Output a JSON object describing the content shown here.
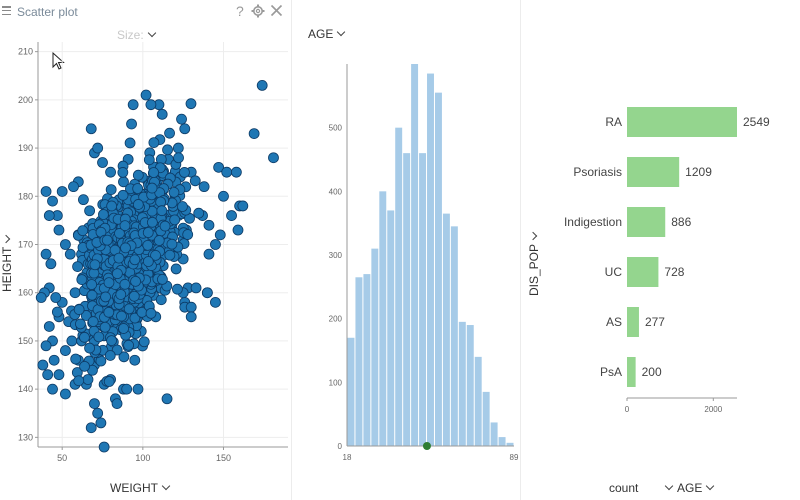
{
  "scatter": {
    "title": "Scatter plot",
    "help_icon": "?",
    "size_label": "Size:",
    "x_axis_label": "WEIGHT",
    "y_axis_label": "HEIGHT",
    "colors": {
      "point": "#1f77b4",
      "point_stroke": "#0d3b66",
      "grid": "#ededed",
      "axis": "#999999"
    }
  },
  "histogram": {
    "column_label": "AGE",
    "colors": {
      "bar": "#a6cbe8",
      "marker": "#2e7d32"
    }
  },
  "barchart": {
    "y_axis_label": "DIS_POP",
    "x_axis_label": "count",
    "split_label": "AGE",
    "colors": {
      "bar": "#94d58e"
    }
  },
  "chart_data": [
    {
      "type": "scatter",
      "xlabel": "WEIGHT",
      "ylabel": "HEIGHT",
      "xlim": [
        35,
        190
      ],
      "ylim": [
        128,
        212
      ],
      "xticks": [
        "50",
        "100",
        "150"
      ],
      "yticks": [
        "130",
        "140",
        "150",
        "160",
        "170",
        "180",
        "190",
        "200",
        "210"
      ],
      "grid": true,
      "points": [
        [
          174,
          203
        ],
        [
          181,
          188
        ],
        [
          169,
          193
        ],
        [
          147,
          186
        ],
        [
          152,
          185
        ],
        [
          158,
          185
        ],
        [
          160,
          178
        ],
        [
          162,
          178
        ],
        [
          155,
          176
        ],
        [
          159,
          173
        ],
        [
          150,
          180
        ],
        [
          148,
          172
        ],
        [
          141,
          168
        ],
        [
          140,
          160
        ],
        [
          128,
          161
        ],
        [
          125,
          167
        ],
        [
          121,
          168
        ],
        [
          126,
          158
        ],
        [
          133,
          161
        ],
        [
          115,
          138
        ],
        [
          83,
          138
        ],
        [
          76,
          141
        ],
        [
          76,
          128
        ],
        [
          74,
          133
        ],
        [
          68,
          132
        ],
        [
          72,
          135
        ],
        [
          70,
          137
        ],
        [
          65,
          141
        ],
        [
          66,
          142
        ],
        [
          65,
          145
        ],
        [
          70,
          145
        ],
        [
          88,
          140
        ],
        [
          90,
          140
        ],
        [
          80,
          142
        ],
        [
          84,
          137
        ],
        [
          97,
          140
        ],
        [
          95,
          146
        ],
        [
          99,
          152
        ],
        [
          97,
          155
        ],
        [
          108,
          155
        ],
        [
          104,
          157
        ],
        [
          126,
          157
        ],
        [
          130,
          157
        ],
        [
          130,
          155
        ],
        [
          125,
          160
        ],
        [
          140,
          160
        ],
        [
          145,
          158
        ],
        [
          112,
          161
        ],
        [
          92,
          160
        ],
        [
          103,
          162
        ],
        [
          102,
          167
        ],
        [
          105,
          170
        ],
        [
          118,
          174
        ],
        [
          122,
          176
        ],
        [
          127,
          173
        ],
        [
          137,
          176
        ],
        [
          141,
          174
        ],
        [
          145,
          170
        ],
        [
          138,
          182
        ],
        [
          130,
          185
        ],
        [
          122,
          190
        ],
        [
          126,
          194
        ],
        [
          124,
          196
        ],
        [
          112,
          197
        ],
        [
          110,
          199
        ],
        [
          105,
          199
        ],
        [
          102,
          201
        ],
        [
          94,
          199
        ],
        [
          93,
          195
        ],
        [
          108,
          186
        ],
        [
          120,
          180
        ],
        [
          98,
          178
        ],
        [
          95,
          180
        ],
        [
          88,
          183
        ],
        [
          80,
          185
        ],
        [
          75,
          187
        ],
        [
          70,
          189
        ],
        [
          68,
          194
        ],
        [
          72,
          190
        ],
        [
          85,
          176
        ],
        [
          60,
          183
        ],
        [
          57,
          182
        ],
        [
          50,
          181
        ],
        [
          47,
          176
        ],
        [
          42,
          176
        ],
        [
          40,
          181
        ],
        [
          44,
          179
        ],
        [
          48,
          173
        ],
        [
          55,
          168
        ],
        [
          43,
          166
        ],
        [
          50,
          158
        ],
        [
          46,
          159
        ],
        [
          42,
          161
        ],
        [
          48,
          155
        ],
        [
          44,
          150
        ],
        [
          45,
          146
        ],
        [
          41,
          143
        ],
        [
          48,
          143
        ],
        [
          52,
          139
        ],
        [
          38,
          145
        ],
        [
          40,
          149
        ],
        [
          42,
          153
        ],
        [
          47,
          156
        ],
        [
          52,
          148
        ],
        [
          56,
          150
        ],
        [
          60,
          146
        ],
        [
          54,
          154
        ],
        [
          58,
          160
        ],
        [
          62,
          168
        ],
        [
          52,
          170
        ],
        [
          40,
          168
        ],
        [
          39,
          160
        ],
        [
          37,
          159
        ],
        [
          44,
          140
        ],
        [
          58,
          141
        ],
        [
          62,
          150
        ],
        [
          66,
          151
        ],
        [
          70,
          150
        ],
        [
          60,
          172
        ],
        [
          67,
          177
        ]
      ]
    },
    {
      "type": "bar",
      "subtype": "histogram",
      "xlabel": "AGE",
      "xlim": [
        18,
        89
      ],
      "ylim": [
        0,
        600
      ],
      "yticks": [
        "0",
        "100",
        "200",
        "300",
        "400",
        "500"
      ],
      "xticks": [
        "18",
        "89"
      ],
      "values": [
        170,
        265,
        270,
        310,
        400,
        370,
        500,
        460,
        600,
        460,
        585,
        555,
        365,
        345,
        195,
        190,
        140,
        85,
        37,
        14,
        5
      ],
      "marker_x": 52
    },
    {
      "type": "bar",
      "orientation": "horizontal",
      "categories": [
        "RA",
        "Psoriasis",
        "Indigestion",
        "UC",
        "AS",
        "PsA"
      ],
      "values": [
        2549,
        1209,
        886,
        728,
        277,
        200
      ],
      "value_labels": [
        "2549",
        "1209",
        "886",
        "728",
        "277",
        "200"
      ],
      "ylabel": "DIS_POP",
      "xlabel": "count",
      "xlim": [
        0,
        2549
      ],
      "xticks": [
        "0",
        "2000"
      ]
    }
  ]
}
